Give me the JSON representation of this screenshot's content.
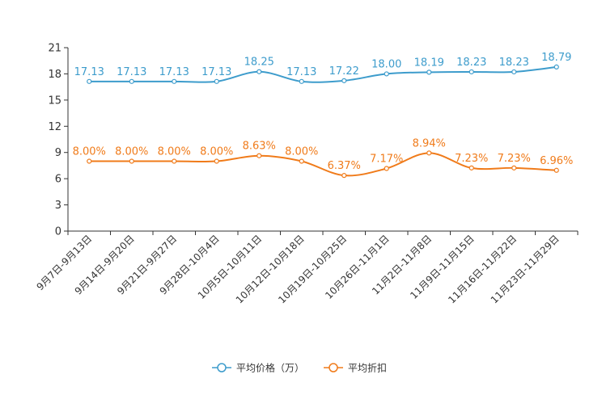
{
  "chart_data": {
    "type": "line",
    "title": "",
    "xlabel": "",
    "ylabel": "",
    "ylim": [
      0,
      21
    ],
    "yticks": [
      0,
      3,
      6,
      9,
      12,
      15,
      18,
      21
    ],
    "grid": false,
    "legend_position": "bottom-center",
    "categories": [
      "9月7日-9月13日",
      "9月14日-9月20日",
      "9月21日-9月27日",
      "9月28日-10月4日",
      "10月5日-10月11日",
      "10月12日-10月18日",
      "10月19日-10月25日",
      "10月26日-11月1日",
      "11月2日-11月8日",
      "11月9日-11月15日",
      "11月16日-11月22日",
      "11月23日-11月29日"
    ],
    "series": [
      {
        "name": "平均价格（万）",
        "color": "#3d9ccc",
        "values": [
          17.13,
          17.13,
          17.13,
          17.13,
          18.25,
          17.13,
          17.22,
          18.0,
          18.19,
          18.23,
          18.23,
          18.79
        ],
        "labels": [
          "17.13",
          "17.13",
          "17.13",
          "17.13",
          "18.25",
          "17.13",
          "17.22",
          "18.00",
          "18.19",
          "18.23",
          "18.23",
          "18.79"
        ]
      },
      {
        "name": "平均折扣",
        "color": "#f07b1a",
        "values": [
          8.0,
          8.0,
          8.0,
          8.0,
          8.63,
          8.0,
          6.37,
          7.17,
          8.94,
          7.23,
          7.23,
          6.96
        ],
        "labels": [
          "8.00%",
          "8.00%",
          "8.00%",
          "8.00%",
          "8.63%",
          "8.00%",
          "6.37%",
          "7.17%",
          "8.94%",
          "7.23%",
          "7.23%",
          "6.96%"
        ]
      }
    ]
  }
}
